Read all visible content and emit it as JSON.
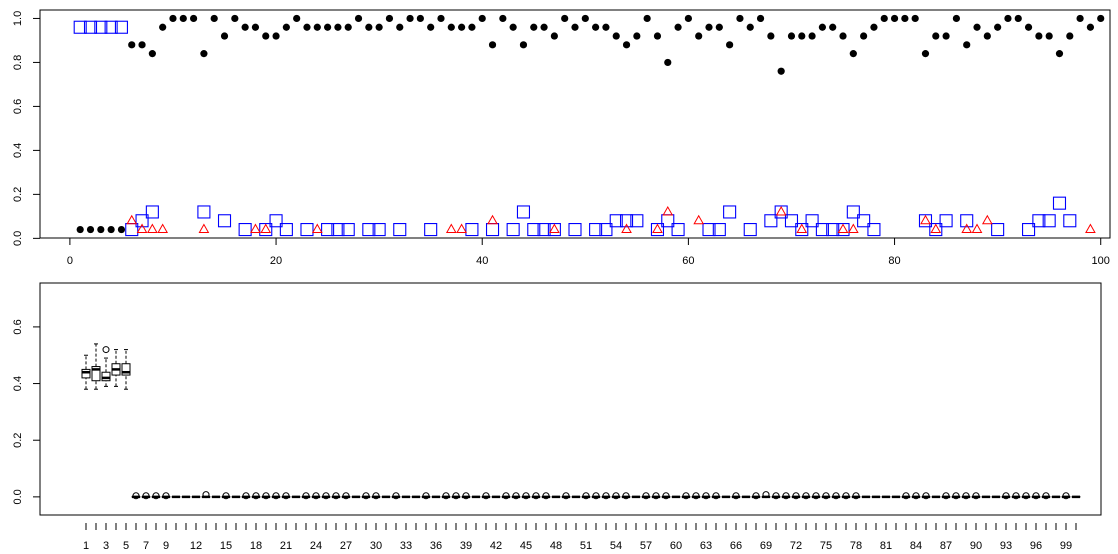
{
  "chart_data": [
    {
      "type": "scatter",
      "x": [
        1,
        2,
        3,
        4,
        5,
        6,
        7,
        8,
        9,
        10,
        11,
        12,
        13,
        14,
        15,
        16,
        17,
        18,
        19,
        20,
        21,
        22,
        23,
        24,
        25,
        26,
        27,
        28,
        29,
        30,
        31,
        32,
        33,
        34,
        35,
        36,
        37,
        38,
        39,
        40,
        41,
        42,
        43,
        44,
        45,
        46,
        47,
        48,
        49,
        50,
        51,
        52,
        53,
        54,
        55,
        56,
        57,
        58,
        59,
        60,
        61,
        62,
        63,
        64,
        65,
        66,
        67,
        68,
        69,
        70,
        71,
        72,
        73,
        74,
        75,
        76,
        77,
        78,
        79,
        80,
        81,
        82,
        83,
        84,
        85,
        86,
        87,
        88,
        89,
        90,
        91,
        92,
        93,
        94,
        95,
        96,
        97,
        98,
        99,
        100
      ],
      "series": [
        {
          "color": "#000000",
          "marker": "circle",
          "values": [
            0.04,
            0.04,
            0.04,
            0.04,
            0.04,
            0.88,
            0.88,
            0.84,
            0.96,
            1,
            1,
            1,
            0.84,
            1,
            0.92,
            1,
            0.96,
            0.96,
            0.92,
            0.92,
            0.96,
            1,
            0.96,
            0.96,
            0.96,
            0.96,
            0.96,
            1,
            0.96,
            0.96,
            1,
            0.96,
            1,
            1,
            0.96,
            1,
            0.96,
            0.96,
            0.96,
            1,
            0.88,
            1,
            0.96,
            0.88,
            0.96,
            0.96,
            0.92,
            1,
            0.96,
            1,
            0.96,
            0.96,
            0.92,
            0.88,
            0.92,
            1,
            0.92,
            0.8,
            0.96,
            1,
            0.92,
            0.96,
            0.96,
            0.88,
            1,
            0.96,
            1,
            0.92,
            0.76,
            0.92,
            0.92,
            0.92,
            0.96,
            0.96,
            0.92,
            0.84,
            0.92,
            0.96,
            1,
            1,
            1,
            1,
            0.84,
            0.92,
            0.92,
            1,
            0.88,
            0.96,
            0.92,
            0.96,
            1,
            1,
            0.96,
            0.92,
            0.92,
            0.84,
            0.92,
            1,
            0.96,
            1
          ]
        },
        {
          "color": "#0000ff",
          "marker": "square",
          "values": [
            0.96,
            0.96,
            0.96,
            0.96,
            0.96,
            0.04,
            0.08,
            0.12,
            null,
            null,
            null,
            null,
            0.12,
            null,
            0.08,
            null,
            0.04,
            null,
            0.04,
            0.08,
            0.04,
            null,
            0.04,
            null,
            0.04,
            0.04,
            0.04,
            null,
            0.04,
            0.04,
            null,
            0.04,
            null,
            null,
            0.04,
            null,
            null,
            null,
            0.04,
            null,
            0.04,
            null,
            0.04,
            0.12,
            0.04,
            0.04,
            0.04,
            null,
            0.04,
            null,
            0.04,
            0.04,
            0.08,
            0.08,
            0.08,
            null,
            0.04,
            0.08,
            0.04,
            null,
            null,
            0.04,
            0.04,
            0.12,
            null,
            0.04,
            null,
            0.08,
            0.12,
            0.08,
            0.04,
            0.08,
            0.04,
            0.04,
            0.04,
            0.12,
            0.08,
            0.04,
            null,
            null,
            null,
            null,
            0.08,
            0.04,
            0.08,
            null,
            0.08,
            null,
            null,
            0.04,
            null,
            null,
            0.04,
            0.08,
            0.08,
            0.16,
            0.08,
            null,
            null,
            null
          ]
        },
        {
          "color": "#ff0000",
          "marker": "triangle",
          "values": [
            null,
            null,
            null,
            null,
            null,
            0.08,
            0.04,
            0.04,
            0.04,
            null,
            null,
            null,
            0.04,
            null,
            null,
            null,
            null,
            0.04,
            0.04,
            null,
            null,
            null,
            null,
            0.04,
            null,
            null,
            null,
            null,
            null,
            null,
            null,
            null,
            null,
            null,
            null,
            null,
            0.04,
            0.04,
            null,
            null,
            0.08,
            null,
            null,
            null,
            null,
            null,
            0.04,
            null,
            null,
            null,
            null,
            null,
            null,
            0.04,
            null,
            null,
            0.04,
            0.12,
            null,
            null,
            0.08,
            null,
            null,
            null,
            null,
            null,
            null,
            null,
            0.12,
            null,
            0.04,
            null,
            null,
            null,
            0.04,
            0.04,
            null,
            null,
            null,
            null,
            null,
            null,
            0.08,
            0.04,
            null,
            null,
            0.04,
            0.04,
            0.08,
            null,
            null,
            null,
            null,
            null,
            null,
            null,
            null,
            null,
            0.04,
            null
          ]
        }
      ],
      "xlim": [
        -2.9,
        100.9
      ],
      "ylim": [
        0.0016,
        1.0384
      ],
      "xticks": [
        0,
        20,
        40,
        60,
        80,
        100
      ],
      "yticks": [
        {
          "value": 0,
          "label": "0.0"
        },
        0.2,
        0.4,
        0.6,
        0.8,
        {
          "value": 1,
          "label": "1.0"
        }
      ]
    },
    {
      "type": "boxplot",
      "categories": [
        "1",
        null,
        "3",
        null,
        "5",
        null,
        "7",
        null,
        "9",
        null,
        null,
        "12",
        null,
        null,
        "15",
        null,
        null,
        "18",
        null,
        null,
        "21",
        null,
        null,
        "24",
        null,
        null,
        "27",
        null,
        null,
        "30",
        null,
        null,
        "33",
        null,
        null,
        "36",
        null,
        null,
        "39",
        null,
        null,
        "42",
        null,
        null,
        "45",
        null,
        null,
        "48",
        null,
        null,
        "51",
        null,
        null,
        "54",
        null,
        null,
        "57",
        null,
        null,
        "60",
        null,
        null,
        "63",
        null,
        null,
        "66",
        null,
        null,
        "69",
        null,
        null,
        "72",
        null,
        null,
        "75",
        null,
        null,
        "78",
        null,
        null,
        "81",
        null,
        null,
        "84",
        null,
        null,
        "87",
        null,
        null,
        "90",
        null,
        null,
        "93",
        null,
        null,
        "96",
        null,
        null,
        "99",
        null
      ],
      "min": [
        0.38,
        0.38,
        0.39,
        0.39,
        0.38,
        0,
        0,
        0,
        0,
        0,
        0,
        0,
        0,
        0,
        0,
        0,
        0,
        0,
        0,
        0,
        0,
        0,
        0,
        0,
        0,
        0,
        0,
        0,
        0,
        0,
        0,
        0,
        0,
        0,
        0,
        0,
        0,
        0,
        0,
        0,
        0,
        0,
        0,
        0,
        0,
        0,
        0,
        0,
        0,
        0,
        0,
        0,
        0,
        0,
        0,
        0,
        0,
        0,
        0,
        0,
        0,
        0,
        0,
        0,
        0,
        0,
        0,
        0,
        0,
        0,
        0,
        0,
        0,
        0,
        0,
        0,
        0,
        0,
        0,
        0,
        0,
        0,
        0,
        0,
        0,
        0,
        0,
        0,
        0,
        0,
        0,
        0,
        0,
        0,
        0,
        0,
        0,
        0,
        0,
        0
      ],
      "q1": [
        0.42,
        0.41,
        0.41,
        0.43,
        0.43,
        0,
        0,
        0,
        0,
        0,
        0,
        0,
        0,
        0,
        0,
        0,
        0,
        0,
        0,
        0,
        0,
        0,
        0,
        0,
        0,
        0,
        0,
        0,
        0,
        0,
        0,
        0,
        0,
        0,
        0,
        0,
        0,
        0,
        0,
        0,
        0,
        0,
        0,
        0,
        0,
        0,
        0,
        0,
        0,
        0,
        0,
        0,
        0,
        0,
        0,
        0,
        0,
        0,
        0,
        0,
        0,
        0,
        0,
        0,
        0,
        0,
        0,
        0,
        0,
        0,
        0,
        0,
        0,
        0,
        0,
        0,
        0,
        0,
        0,
        0,
        0,
        0,
        0,
        0,
        0,
        0,
        0,
        0,
        0,
        0,
        0,
        0,
        0,
        0,
        0,
        0,
        0,
        0,
        0,
        0
      ],
      "median": [
        0.44,
        0.45,
        0.42,
        0.45,
        0.44,
        0,
        0,
        0,
        0,
        0,
        0,
        0,
        0,
        0,
        0,
        0,
        0,
        0,
        0,
        0,
        0,
        0,
        0,
        0,
        0,
        0,
        0,
        0,
        0,
        0,
        0,
        0,
        0,
        0,
        0,
        0,
        0,
        0,
        0,
        0,
        0,
        0,
        0,
        0,
        0,
        0,
        0,
        0,
        0,
        0,
        0,
        0,
        0,
        0,
        0,
        0,
        0,
        0,
        0,
        0,
        0,
        0,
        0,
        0,
        0,
        0,
        0,
        0,
        0,
        0,
        0,
        0,
        0,
        0,
        0,
        0,
        0,
        0,
        0,
        0,
        0,
        0,
        0,
        0,
        0,
        0,
        0,
        0,
        0,
        0,
        0,
        0,
        0,
        0,
        0,
        0,
        0,
        0,
        0,
        0
      ],
      "q3": [
        0.45,
        0.46,
        0.44,
        0.47,
        0.47,
        0,
        0,
        0,
        0,
        0,
        0,
        0,
        0,
        0,
        0,
        0,
        0,
        0,
        0,
        0,
        0,
        0,
        0,
        0,
        0,
        0,
        0,
        0,
        0,
        0,
        0,
        0,
        0,
        0,
        0,
        0,
        0,
        0,
        0,
        0,
        0,
        0,
        0,
        0,
        0,
        0,
        0,
        0,
        0,
        0,
        0,
        0,
        0,
        0,
        0,
        0,
        0,
        0,
        0,
        0,
        0,
        0,
        0,
        0,
        0,
        0,
        0,
        0,
        0,
        0,
        0,
        0,
        0,
        0,
        0,
        0,
        0,
        0,
        0,
        0,
        0,
        0,
        0,
        0,
        0,
        0,
        0,
        0,
        0,
        0,
        0,
        0,
        0,
        0,
        0,
        0,
        0,
        0,
        0,
        0
      ],
      "max": [
        0.5,
        0.54,
        0.49,
        0.52,
        0.52,
        0,
        0,
        0,
        0,
        0,
        0,
        0,
        0,
        0,
        0,
        0,
        0,
        0,
        0,
        0,
        0,
        0,
        0,
        0,
        0,
        0,
        0,
        0,
        0,
        0,
        0,
        0,
        0,
        0,
        0,
        0,
        0,
        0,
        0,
        0,
        0,
        0,
        0,
        0,
        0,
        0,
        0,
        0,
        0,
        0,
        0,
        0,
        0,
        0,
        0,
        0,
        0,
        0,
        0,
        0,
        0,
        0,
        0,
        0,
        0,
        0,
        0,
        0,
        0,
        0,
        0,
        0,
        0,
        0,
        0,
        0,
        0,
        0,
        0,
        0,
        0,
        0,
        0,
        0,
        0,
        0,
        0,
        0,
        0,
        0,
        0,
        0,
        0,
        0,
        0,
        0,
        0,
        0,
        0,
        0
      ],
      "outliers": [
        [],
        [],
        [
          0.52
        ],
        [],
        [],
        [
          0.004
        ],
        [
          0.004
        ],
        [
          0.004
        ],
        [
          0.004
        ],
        [],
        [],
        [],
        [
          0.008
        ],
        [],
        [
          0.004
        ],
        [],
        [
          0.004
        ],
        [
          0.004
        ],
        [
          0.004
        ],
        [
          0.004
        ],
        [
          0.004
        ],
        [],
        [
          0.004
        ],
        [
          0.004
        ],
        [
          0.004
        ],
        [
          0.004
        ],
        [
          0.004
        ],
        [],
        [
          0.004
        ],
        [
          0.004
        ],
        [],
        [
          0.004
        ],
        [],
        [],
        [
          0.004
        ],
        [],
        [
          0.004
        ],
        [
          0.004
        ],
        [
          0.004
        ],
        [],
        [
          0.004
        ],
        [],
        [
          0.004
        ],
        [
          0.004
        ],
        [
          0.004
        ],
        [
          0.004
        ],
        [
          0.004
        ],
        [],
        [
          0.004
        ],
        [],
        [
          0.004
        ],
        [
          0.004
        ],
        [
          0.004
        ],
        [
          0.004
        ],
        [
          0.004
        ],
        [],
        [
          0.004
        ],
        [
          0.004
        ],
        [
          0.004
        ],
        [],
        [
          0.004
        ],
        [
          0.004
        ],
        [
          0.004
        ],
        [
          0.004
        ],
        [],
        [
          0.004
        ],
        [],
        [
          0.004
        ],
        [
          0.008
        ],
        [
          0.004
        ],
        [
          0.004
        ],
        [
          0.004
        ],
        [
          0.004
        ],
        [
          0.004
        ],
        [
          0.004
        ],
        [
          0.004
        ],
        [
          0.004
        ],
        [
          0.004
        ],
        [],
        [],
        [],
        [],
        [
          0.004
        ],
        [
          0.004
        ],
        [
          0.004
        ],
        [],
        [
          0.004
        ],
        [
          0.004
        ],
        [
          0.004
        ],
        [
          0.004
        ],
        [],
        [],
        [
          0.004
        ],
        [
          0.004
        ],
        [
          0.004
        ],
        [
          0.004
        ],
        [
          0.004
        ],
        [],
        [
          0.004
        ],
        []
      ],
      "ylim": [
        -0.064,
        0.755
      ],
      "yticks": [
        {
          "value": 0,
          "label": "0.0"
        },
        0.2,
        0.4,
        0.6
      ]
    }
  ]
}
